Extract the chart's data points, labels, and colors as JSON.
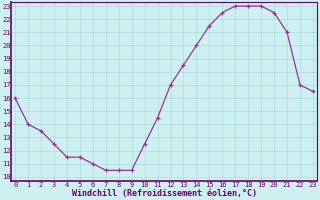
{
  "x": [
    0,
    1,
    2,
    3,
    4,
    5,
    6,
    7,
    8,
    9,
    10,
    11,
    12,
    13,
    14,
    15,
    16,
    17,
    18,
    19,
    20,
    21,
    22,
    23
  ],
  "y": [
    16,
    14,
    13.5,
    12.5,
    11.5,
    11.5,
    11,
    10.5,
    10.5,
    10.5,
    12.5,
    14.5,
    17,
    18.5,
    20,
    21.5,
    22.5,
    23,
    23,
    23,
    22.5,
    21,
    17,
    16.5
  ],
  "ylim_min": 10,
  "ylim_max": 23,
  "xlim_min": 0,
  "xlim_max": 23,
  "yticks": [
    10,
    11,
    12,
    13,
    14,
    15,
    16,
    17,
    18,
    19,
    20,
    21,
    22,
    23
  ],
  "xticks": [
    0,
    1,
    2,
    3,
    4,
    5,
    6,
    7,
    8,
    9,
    10,
    11,
    12,
    13,
    14,
    15,
    16,
    17,
    18,
    19,
    20,
    21,
    22,
    23
  ],
  "xlabel": "Windchill (Refroidissement éolien,°C)",
  "line_color": "#993399",
  "marker": "+",
  "markersize": 3.5,
  "linewidth": 0.9,
  "bg_color": "#cff0f0",
  "grid_color": "#aadddd",
  "spine_color": "#660066",
  "tick_color": "#660066",
  "xlabel_color": "#660066",
  "tick_fontsize": 5.0,
  "xlabel_fontsize": 6.0
}
